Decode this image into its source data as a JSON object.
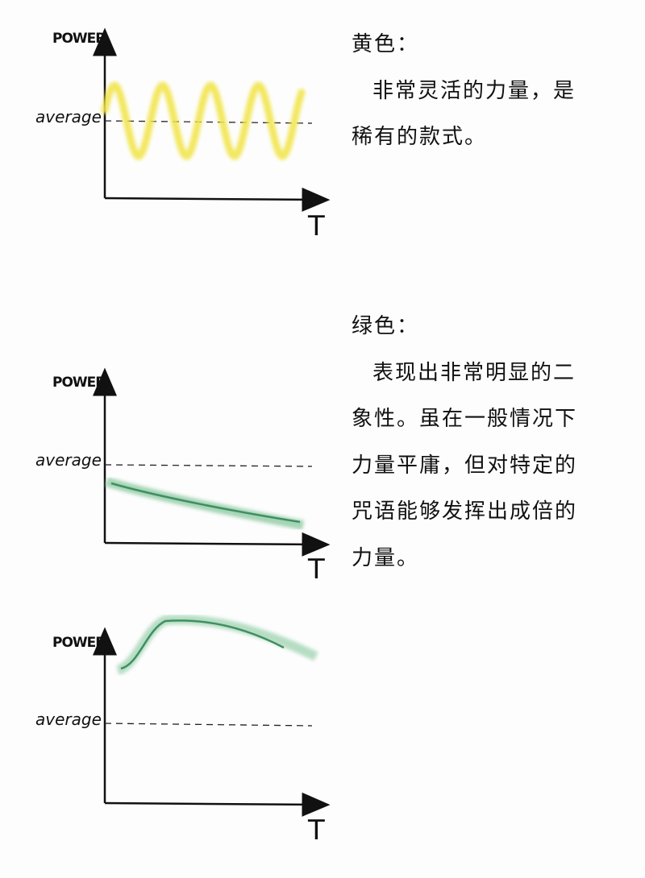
{
  "axis_labels": {
    "y": "POWER",
    "average": "average",
    "x": "T"
  },
  "sections": [
    {
      "heading": "黄色：",
      "lines": [
        "非常灵活的力量，是",
        "稀有的款式。"
      ],
      "curve_color": "#f3e85a"
    },
    {
      "heading": "绿色：",
      "lines": [
        "表现出非常明显的二",
        "象性。虽在一般情况下",
        "力量平庸，但对特定的",
        "咒语能够发挥出成倍的",
        "力量。"
      ],
      "curve_color": "#5aa97a"
    }
  ]
}
